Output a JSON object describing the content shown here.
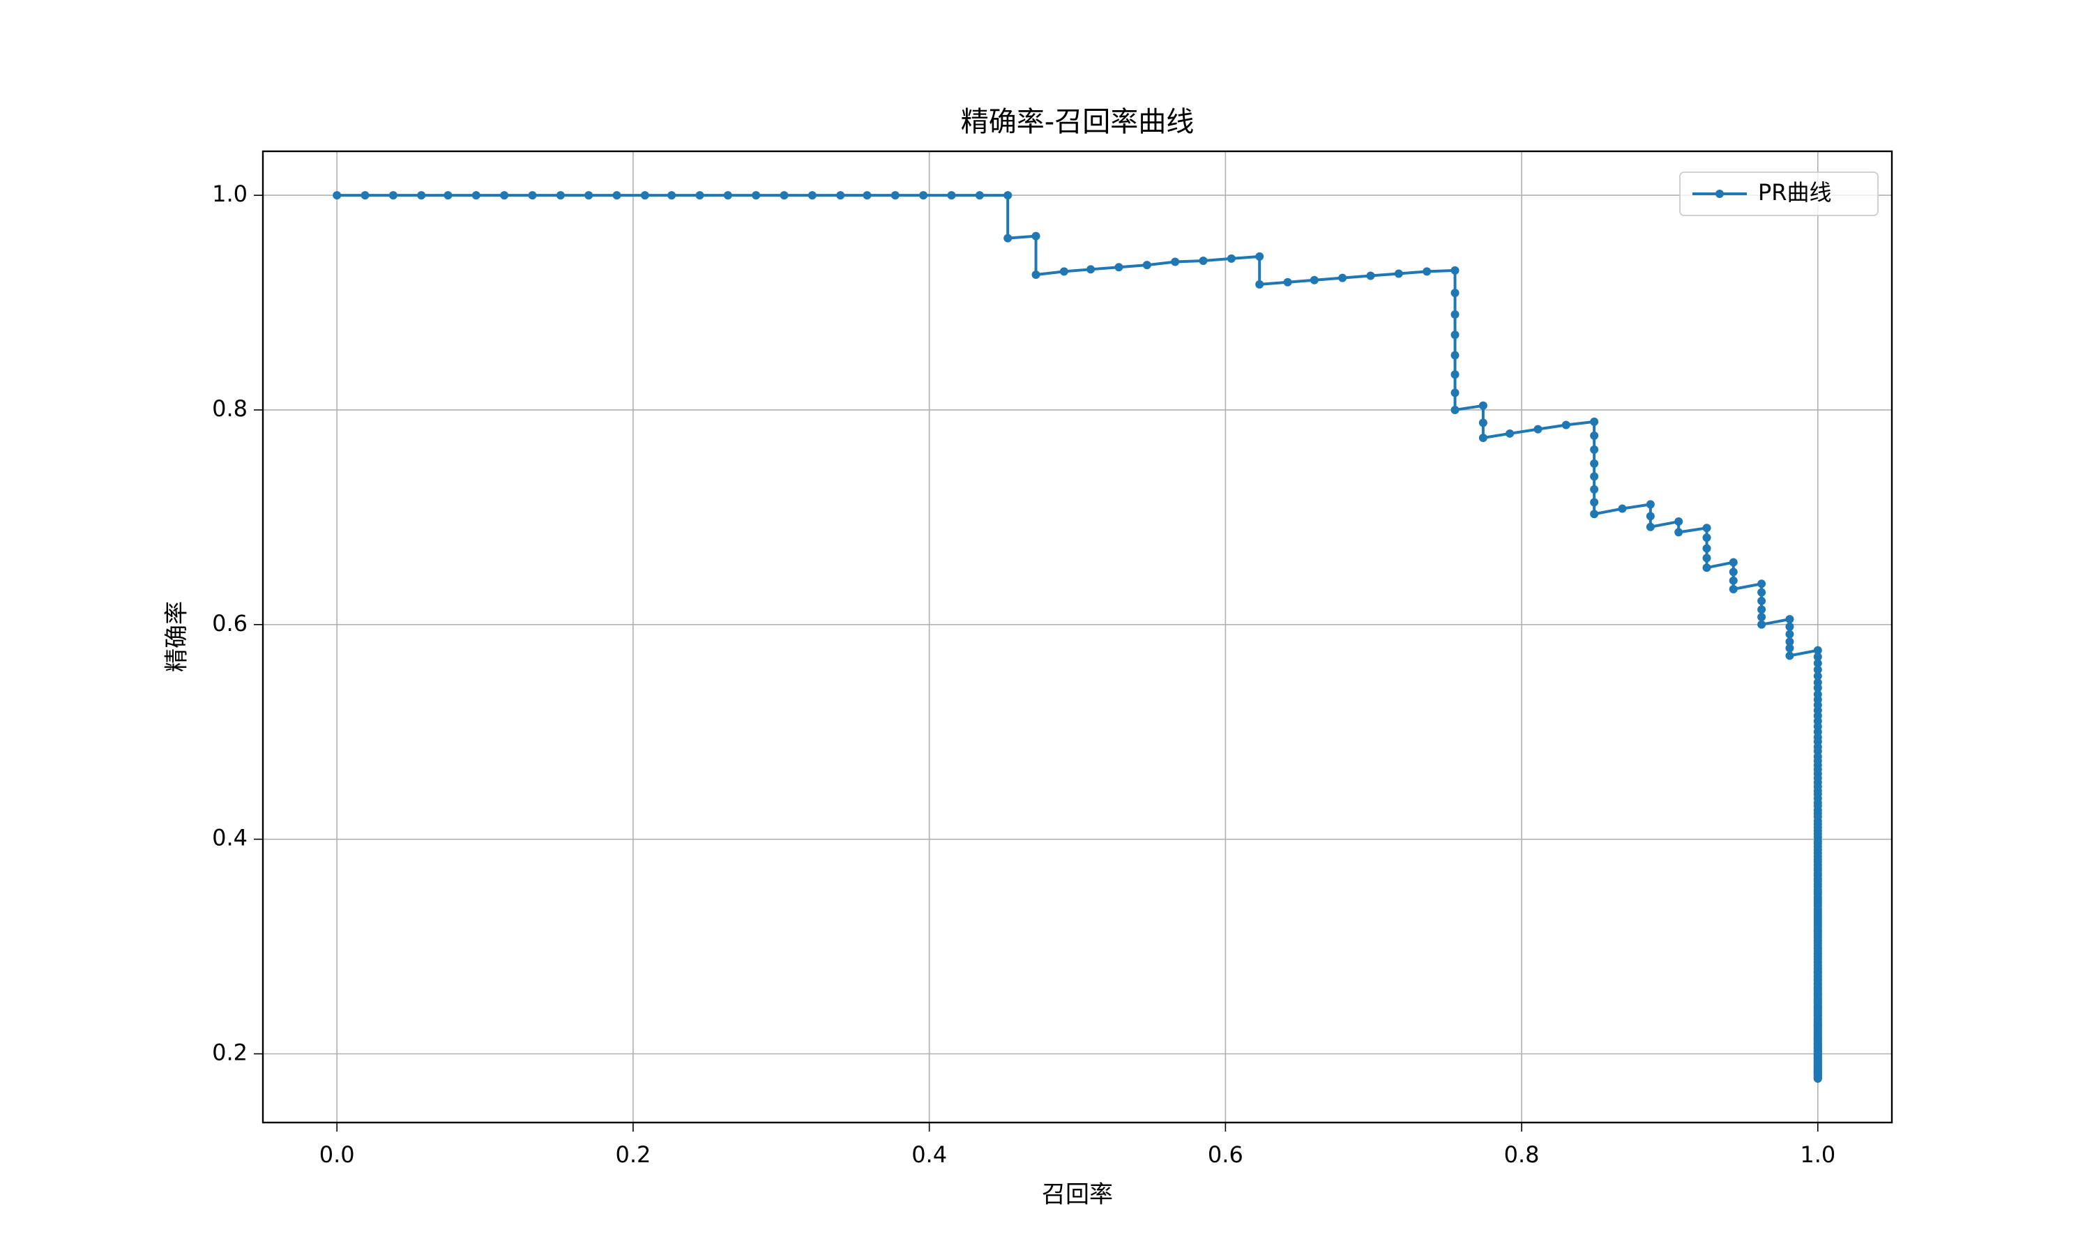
{
  "chart_data": {
    "type": "line",
    "title": "精确率-召回率曲线",
    "xlabel": "召回率",
    "ylabel": "精确率",
    "xlim": [
      -0.05,
      1.05
    ],
    "ylim": [
      0.136,
      1.041
    ],
    "xticks": [
      {
        "value": 0,
        "label": "0.0"
      },
      0.2,
      0.4,
      0.6,
      0.8,
      {
        "value": 1,
        "label": "1.0"
      }
    ],
    "yticks": [
      0.2,
      0.4,
      0.6,
      0.8,
      {
        "value": 1,
        "label": "1.0"
      }
    ],
    "grid": true,
    "legend": "upper right",
    "x": [
      0,
      0.019,
      0.038,
      0.057,
      0.075,
      0.094,
      0.113,
      0.132,
      0.151,
      0.17,
      0.189,
      0.208,
      0.226,
      0.245,
      0.264,
      0.283,
      0.302,
      0.321,
      0.34,
      0.358,
      0.377,
      0.396,
      0.415,
      0.434,
      0.453,
      0.453,
      0.472,
      0.472,
      0.491,
      0.509,
      0.528,
      0.547,
      0.566,
      0.585,
      0.604,
      0.623,
      0.623,
      0.642,
      0.66,
      0.679,
      0.698,
      0.717,
      0.736,
      0.755,
      0.755,
      0.755,
      0.755,
      0.755,
      0.755,
      0.755,
      0.755,
      0.774,
      0.774,
      0.774,
      0.792,
      0.811,
      0.83,
      0.849,
      0.849,
      0.849,
      0.849,
      0.849,
      0.849,
      0.849,
      0.849,
      0.868,
      0.887,
      0.887,
      0.887,
      0.906,
      0.906,
      0.925,
      0.925,
      0.925,
      0.925,
      0.925,
      0.943,
      0.943,
      0.943,
      0.943,
      0.962,
      0.962,
      0.962,
      0.962,
      0.962,
      0.962,
      0.981,
      0.981,
      0.981,
      0.981,
      0.981,
      0.981,
      1,
      1,
      1,
      1,
      1,
      1,
      1,
      1,
      1,
      1,
      1,
      1,
      1,
      1,
      1,
      1,
      1,
      1,
      1,
      1,
      1,
      1,
      1,
      1,
      1,
      1,
      1,
      1,
      1,
      1,
      1,
      1,
      1,
      1,
      1,
      1,
      1,
      1,
      1,
      1,
      1,
      1,
      1,
      1,
      1,
      1,
      1,
      1,
      1,
      1,
      1,
      1,
      1,
      1,
      1,
      1,
      1,
      1,
      1,
      1,
      1,
      1,
      1,
      1,
      1,
      1,
      1,
      1,
      1,
      1,
      1,
      1,
      1,
      1,
      1,
      1,
      1,
      1,
      1,
      1,
      1,
      1,
      1,
      1,
      1,
      1,
      1,
      1,
      1,
      1,
      1,
      1,
      1,
      1,
      1,
      1,
      1,
      1,
      1,
      1,
      1,
      1,
      1,
      1,
      1,
      1,
      1,
      1,
      1,
      1,
      1,
      1,
      1,
      1,
      1,
      1,
      1,
      1,
      1,
      1,
      1,
      1,
      1,
      1,
      1,
      1,
      1,
      1,
      1,
      1,
      1,
      1,
      1,
      1,
      1,
      1,
      1,
      1,
      1,
      1,
      1,
      1,
      1,
      1,
      1,
      1,
      1,
      1,
      1,
      1,
      1,
      1,
      1,
      1,
      1,
      1,
      1,
      1,
      1,
      1,
      1,
      1,
      1,
      1,
      1,
      1,
      1,
      1,
      1,
      1,
      1,
      1,
      1,
      1,
      1,
      1,
      1,
      1,
      1,
      1,
      1,
      1,
      1,
      1,
      1,
      1,
      1,
      1,
      1,
      1,
      1,
      1,
      1,
      1,
      1,
      1,
      1,
      1,
      1,
      1,
      1,
      1,
      1,
      1,
      1,
      1,
      1,
      1,
      1
    ],
    "series": [
      {
        "name": "PR曲线",
        "color": "#1f77b4",
        "marker": "o",
        "values": [
          1,
          1,
          1,
          1,
          1,
          1,
          1,
          1,
          1,
          1,
          1,
          1,
          1,
          1,
          1,
          1,
          1,
          1,
          1,
          1,
          1,
          1,
          1,
          1,
          1,
          0.96,
          0.962,
          0.926,
          0.929,
          0.931,
          0.933,
          0.935,
          0.938,
          0.939,
          0.941,
          0.943,
          0.917,
          0.919,
          0.921,
          0.923,
          0.925,
          0.927,
          0.929,
          0.93,
          0.909,
          0.889,
          0.87,
          0.851,
          0.833,
          0.816,
          0.8,
          0.804,
          0.788,
          0.774,
          0.778,
          0.782,
          0.786,
          0.789,
          0.776,
          0.763,
          0.75,
          0.738,
          0.726,
          0.714,
          0.703,
          0.708,
          0.712,
          0.701,
          0.691,
          0.696,
          0.686,
          0.69,
          0.681,
          0.671,
          0.662,
          0.653,
          0.658,
          0.649,
          0.641,
          0.633,
          0.638,
          0.63,
          0.622,
          0.614,
          0.607,
          0.6,
          0.605,
          0.598,
          0.591,
          0.584,
          0.578,
          0.571,
          0.576,
          0.57,
          0.564,
          0.558,
          0.552,
          0.546,
          0.541,
          0.535,
          0.53,
          0.525,
          0.52,
          0.515,
          0.51,
          0.505,
          0.5,
          0.495,
          0.491,
          0.486,
          0.482,
          0.477,
          0.473,
          0.469,
          0.465,
          0.461,
          0.457,
          0.453,
          0.449,
          0.445,
          0.442,
          0.438,
          0.434,
          0.431,
          0.427,
          0.424,
          0.421,
          0.417,
          0.414,
          0.411,
          0.408,
          0.405,
          0.402,
          0.398,
          0.396,
          0.393,
          0.39,
          0.387,
          0.384,
          0.381,
          0.379,
          0.376,
          0.373,
          0.371,
          0.368,
          0.366,
          0.363,
          0.361,
          0.358,
          0.356,
          0.353,
          0.351,
          0.349,
          0.346,
          0.344,
          0.342,
          0.34,
          0.338,
          0.335,
          0.333,
          0.331,
          0.329,
          0.327,
          0.325,
          0.323,
          0.321,
          0.319,
          0.317,
          0.315,
          0.314,
          0.312,
          0.31,
          0.308,
          0.306,
          0.305,
          0.303,
          0.301,
          0.299,
          0.298,
          0.296,
          0.294,
          0.293,
          0.291,
          0.29,
          0.288,
          0.286,
          0.285,
          0.283,
          0.282,
          0.28,
          0.279,
          0.277,
          0.276,
          0.275,
          0.273,
          0.272,
          0.27,
          0.269,
          0.268,
          0.266,
          0.265,
          0.264,
          0.262,
          0.261,
          0.26,
          0.259,
          0.257,
          0.256,
          0.255,
          0.254,
          0.252,
          0.251,
          0.25,
          0.249,
          0.248,
          0.247,
          0.245,
          0.244,
          0.243,
          0.242,
          0.241,
          0.24,
          0.239,
          0.238,
          0.237,
          0.236,
          0.235,
          0.233,
          0.232,
          0.231,
          0.23,
          0.229,
          0.228,
          0.227,
          0.226,
          0.226,
          0.225,
          0.224,
          0.223,
          0.222,
          0.221,
          0.22,
          0.219,
          0.218,
          0.217,
          0.216,
          0.215,
          0.215,
          0.214,
          0.213,
          0.212,
          0.211,
          0.21,
          0.209,
          0.209,
          0.208,
          0.207,
          0.206,
          0.205,
          0.205,
          0.204,
          0.203,
          0.202,
          0.202,
          0.201,
          0.2,
          0.199,
          0.199,
          0.198,
          0.197,
          0.196,
          0.196,
          0.195,
          0.194,
          0.193,
          0.193,
          0.192,
          0.191,
          0.191,
          0.19,
          0.189,
          0.189,
          0.188,
          0.187,
          0.187,
          0.186,
          0.185,
          0.185,
          0.184,
          0.183,
          0.183,
          0.182,
          0.182,
          0.181,
          0.18,
          0.18,
          0.179,
          0.178,
          0.178,
          0.177,
          0.177
        ]
      }
    ]
  }
}
